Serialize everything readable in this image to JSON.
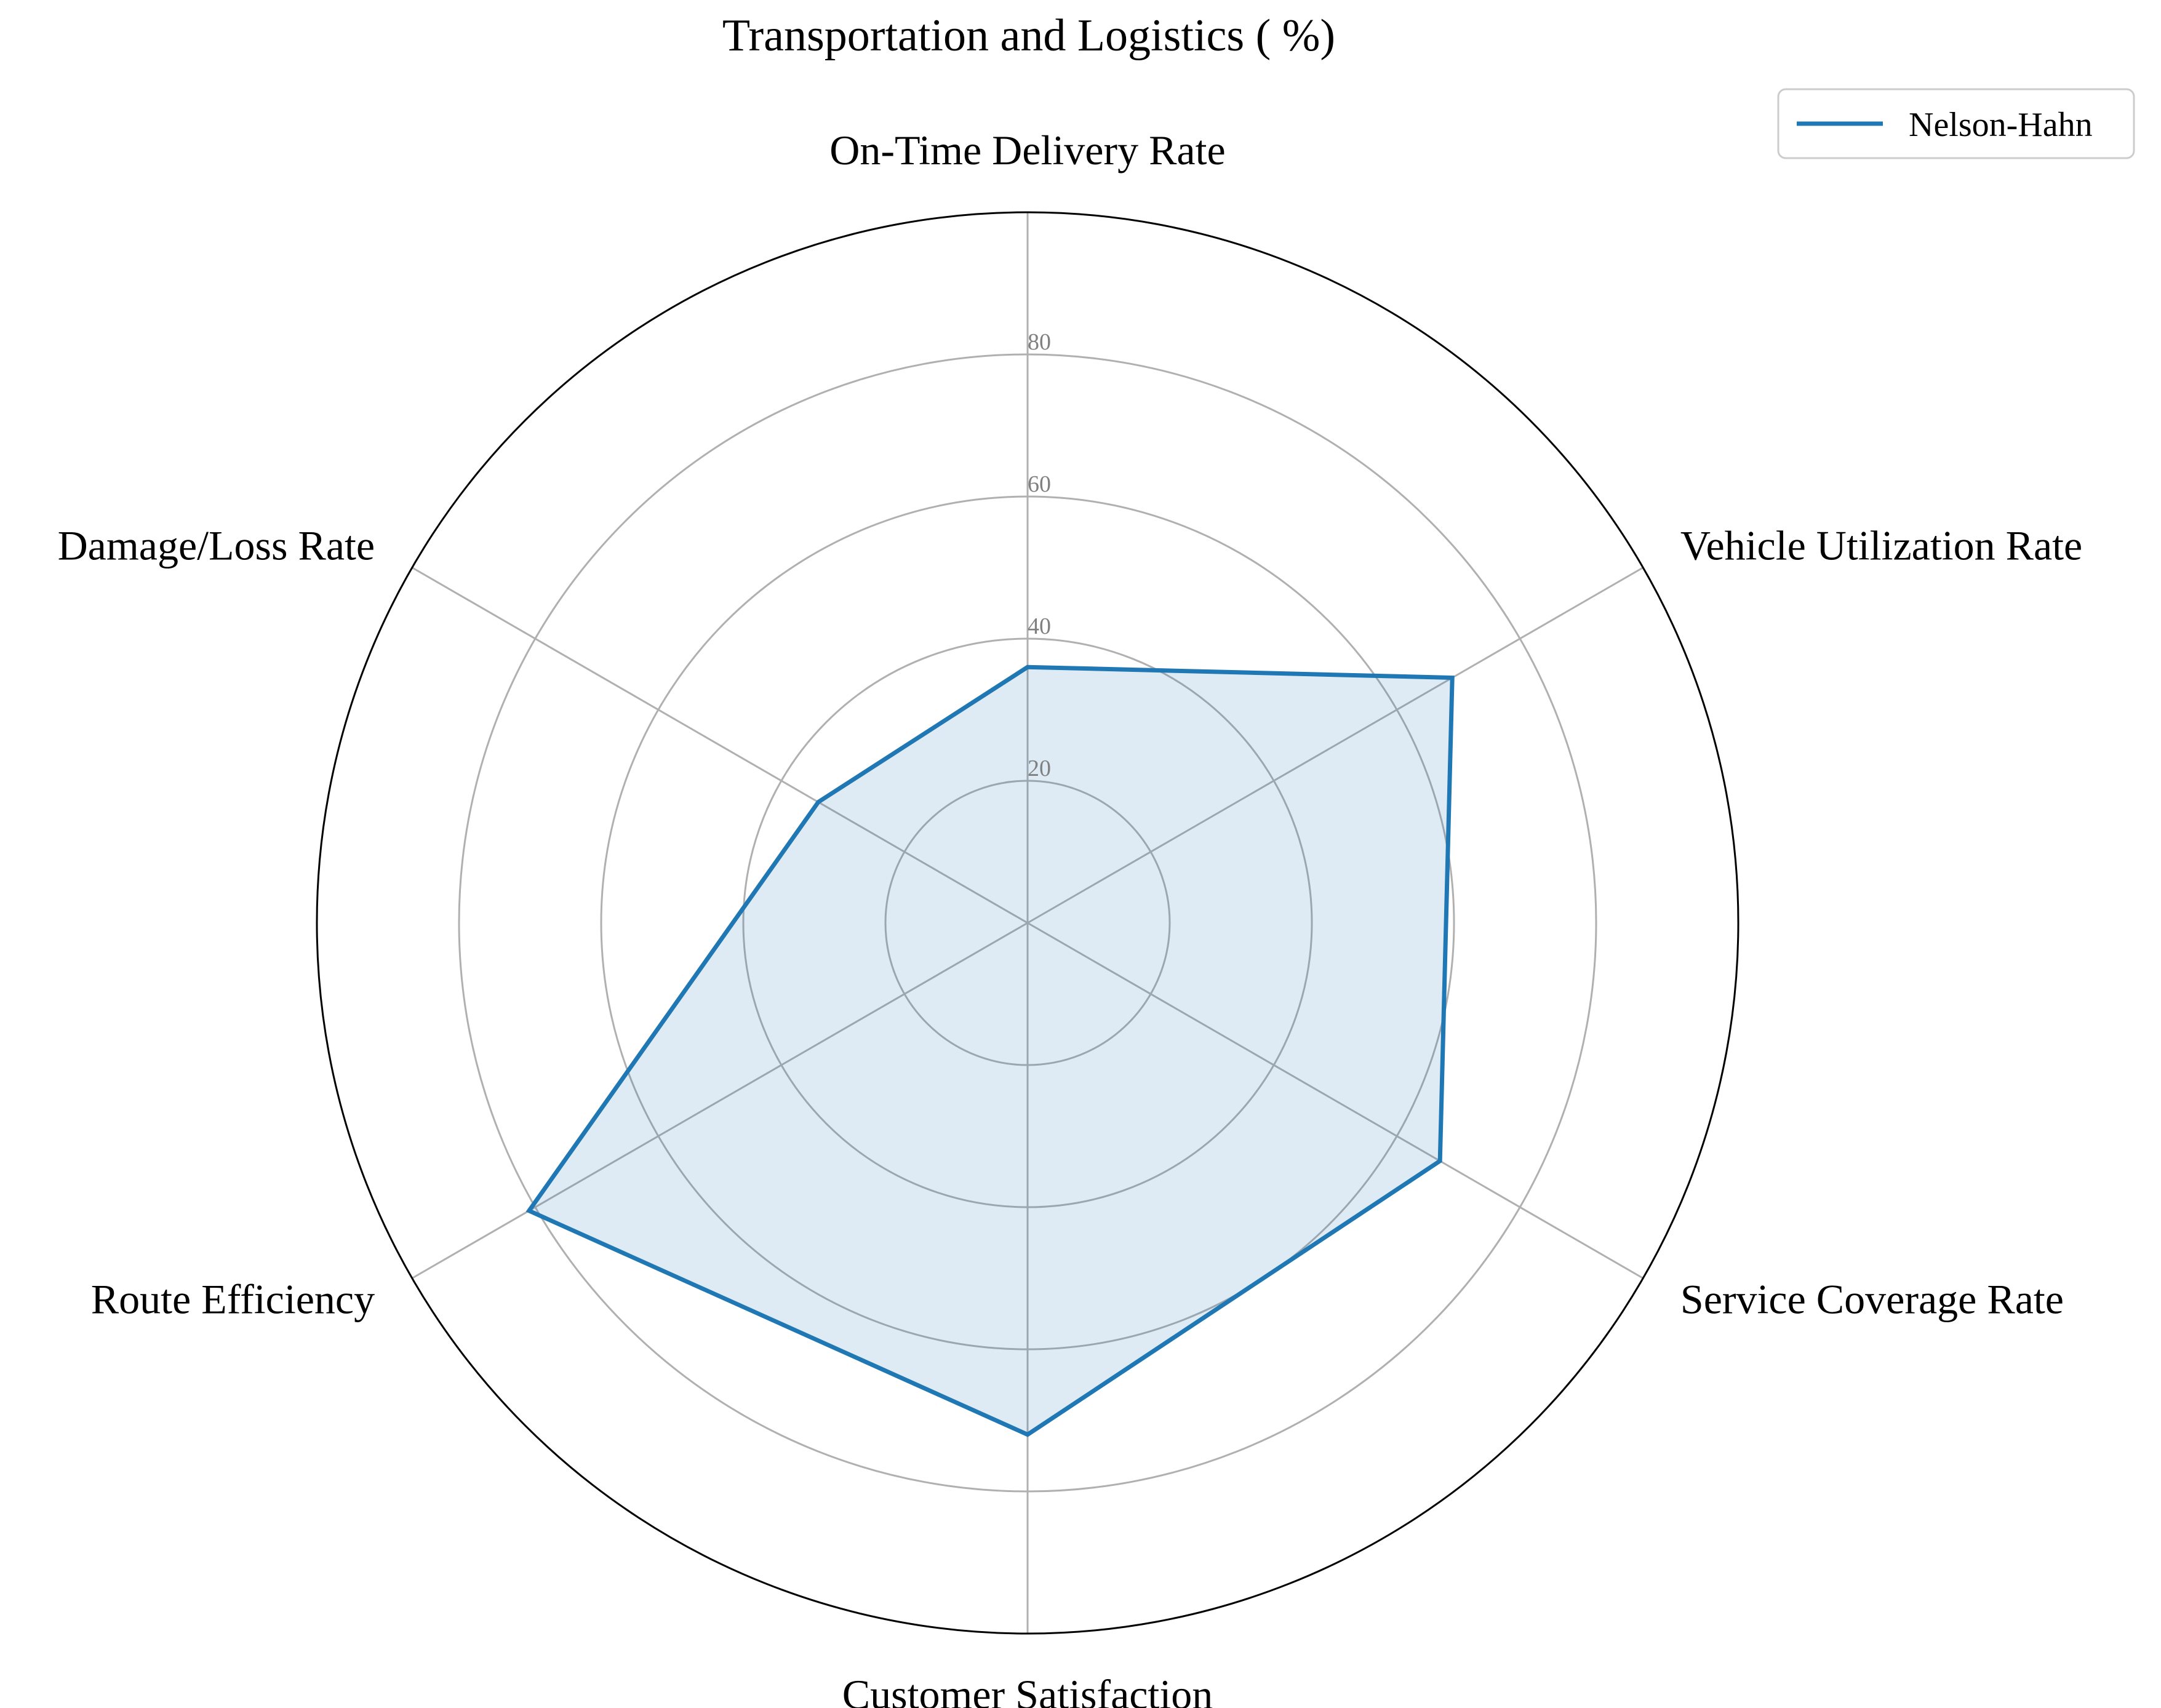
{
  "chart_data": {
    "type": "radar",
    "title": "Transportation and Logistics ( %)",
    "categories": [
      "On-Time Delivery Rate",
      "Vehicle Utilization Rate",
      "Service Coverage Rate",
      "Customer Satisfaction",
      "Route Efficiency",
      "Damage/Loss Rate"
    ],
    "series": [
      {
        "name": "Nelson-Hahn",
        "values": [
          36,
          69,
          67,
          72,
          81,
          34
        ],
        "color": "#1f77b4"
      }
    ],
    "rlim": [
      0,
      100
    ],
    "rticks": [
      20,
      40,
      60,
      80
    ],
    "rtick_labels": [
      "20",
      "40",
      "60",
      "80"
    ],
    "grid": true,
    "legend_position": "top-right",
    "colors": {
      "series_line": "#1f77b4",
      "series_fill": "#1f77b4",
      "grid": "#b0b0b0",
      "outer_ring": "#000000",
      "tick_text": "#808080"
    }
  }
}
